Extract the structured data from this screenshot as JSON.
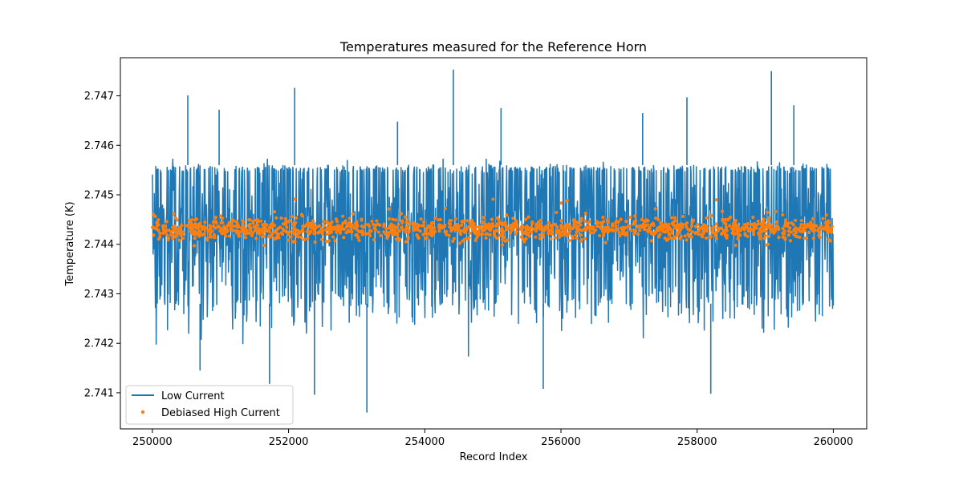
{
  "chart_data": {
    "type": "line",
    "title": "Temperatures measured for the Reference Horn",
    "xlabel": "Record Index",
    "ylabel": "Temperature (K)",
    "xlim": [
      249530,
      260490
    ],
    "ylim": [
      2.74027,
      2.74777
    ],
    "xticks": [
      250000,
      252000,
      254000,
      256000,
      258000,
      260000
    ],
    "xtick_labels": [
      "250000",
      "252000",
      "254000",
      "256000",
      "258000",
      "260000"
    ],
    "yticks": [
      2.741,
      2.742,
      2.743,
      2.744,
      2.745,
      2.746,
      2.747
    ],
    "ytick_labels": [
      "2.741",
      "2.742",
      "2.743",
      "2.744",
      "2.745",
      "2.746",
      "2.747"
    ],
    "legend_position": "lower-left",
    "series": [
      {
        "name": "Low Current",
        "style": "line",
        "color": "#1f77b4",
        "x_range": [
          250000,
          260000
        ],
        "n_points": 10000,
        "center": 2.7443,
        "band": [
          2.7428,
          2.7456
        ],
        "spikes": [
          {
            "x": 250520,
            "y": 2.74701
          },
          {
            "x": 250980,
            "y": 2.74672
          },
          {
            "x": 252090,
            "y": 2.74716
          },
          {
            "x": 253150,
            "y": 2.7406
          },
          {
            "x": 253600,
            "y": 2.74648
          },
          {
            "x": 254420,
            "y": 2.74753
          },
          {
            "x": 255120,
            "y": 2.74675
          },
          {
            "x": 255740,
            "y": 2.74108
          },
          {
            "x": 257200,
            "y": 2.74665
          },
          {
            "x": 257850,
            "y": 2.74697
          },
          {
            "x": 258200,
            "y": 2.74098
          },
          {
            "x": 259090,
            "y": 2.7475
          },
          {
            "x": 259420,
            "y": 2.74681
          },
          {
            "x": 251720,
            "y": 2.74118
          },
          {
            "x": 252380,
            "y": 2.74096
          },
          {
            "x": 250700,
            "y": 2.74145
          }
        ]
      },
      {
        "name": "Debiased High Current",
        "style": "points",
        "color": "#ff7f0e",
        "x_range": [
          250000,
          260000
        ],
        "n_points": 3000,
        "center": 2.74431,
        "band": [
          2.74395,
          2.7448
        ]
      }
    ]
  }
}
